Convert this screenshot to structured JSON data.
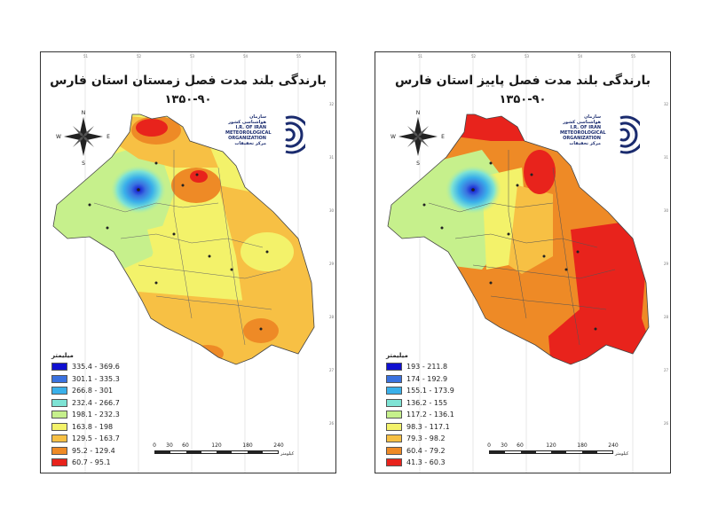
{
  "maps": [
    {
      "id": "winter",
      "title": "بارندگی بلند مدت فصل زمستان استان فارس",
      "period": "۱۳۵۰-۹۰",
      "legend_title": "میلیمتر",
      "legend": [
        {
          "label": "335.4 - 369.6",
          "color": "#1010d0"
        },
        {
          "label": "301.1 - 335.3",
          "color": "#3a72e0"
        },
        {
          "label": "266.8 - 301",
          "color": "#3ab0ea"
        },
        {
          "label": "232.4 - 266.7",
          "color": "#7ee3d4"
        },
        {
          "label": "198.1 - 232.3",
          "color": "#c6f08c"
        },
        {
          "label": "163.8 - 198",
          "color": "#f3f26a"
        },
        {
          "label": "129.5 - 163.7",
          "color": "#f7c044"
        },
        {
          "label": "95.2 - 129.4",
          "color": "#ee8a26"
        },
        {
          "label": "60.7 - 95.1",
          "color": "#e8231c"
        }
      ]
    },
    {
      "id": "autumn",
      "title": "بارندگی بلند مدت فصل پاییز استان فارس",
      "period": "۱۳۵۰-۹۰",
      "legend_title": "میلیمتر",
      "legend": [
        {
          "label": "193 - 211.8",
          "color": "#1010d0"
        },
        {
          "label": "174 - 192.9",
          "color": "#3a72e0"
        },
        {
          "label": "155.1 - 173.9",
          "color": "#3ab0ea"
        },
        {
          "label": "136.2 - 155",
          "color": "#7ee3d4"
        },
        {
          "label": "117.2 - 136.1",
          "color": "#c6f08c"
        },
        {
          "label": "98.3 - 117.1",
          "color": "#f3f26a"
        },
        {
          "label": "79.3 - 98.2",
          "color": "#f7c044"
        },
        {
          "label": "60.4 - 79.2",
          "color": "#ee8a26"
        },
        {
          "label": "41.3 - 60.3",
          "color": "#e8231c"
        }
      ]
    }
  ],
  "organization": {
    "name_fa": "سازمان هواشناسی کشور",
    "name_en": "I.R. OF IRAN METEOROLOGICAL ORGANIZATION",
    "sub_fa": "مرکز تحقیقات"
  },
  "scale": {
    "ticks": [
      "0",
      "30",
      "60",
      "120",
      "180",
      "240"
    ],
    "unit": "کیلومتر"
  },
  "compass": {
    "north": "N",
    "south": "S",
    "east": "E",
    "west": "W"
  },
  "lon_ticks": [
    "51",
    "52",
    "53",
    "54",
    "55"
  ],
  "lat_ticks": [
    "32",
    "31",
    "30",
    "29",
    "28",
    "27",
    "26"
  ]
}
